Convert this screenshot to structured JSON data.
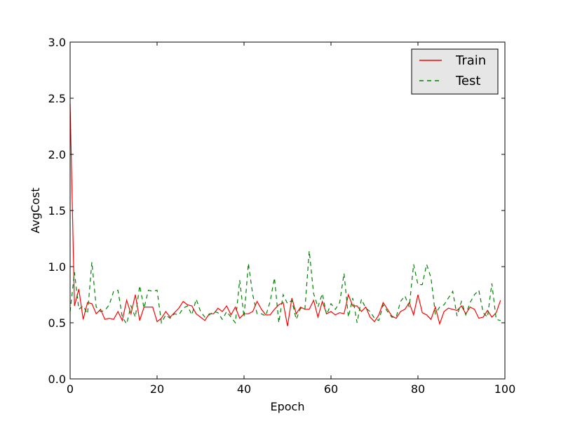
{
  "chart_data": {
    "type": "line",
    "xlabel": "Epoch",
    "ylabel": "AvgCost",
    "xlim": [
      0,
      100
    ],
    "ylim": [
      0.0,
      3.0
    ],
    "x_ticks": [
      "0",
      "20",
      "40",
      "60",
      "80",
      "100"
    ],
    "y_ticks": [
      "0.0",
      "0.5",
      "1.0",
      "1.5",
      "2.0",
      "2.5",
      "3.0"
    ],
    "legend_position": "top-right",
    "grid": false,
    "series": [
      {
        "name": "Train",
        "color": "#ff0000",
        "style": "solid",
        "values": [
          2.45,
          0.65,
          0.8,
          0.53,
          0.68,
          0.67,
          0.58,
          0.62,
          0.53,
          0.54,
          0.53,
          0.6,
          0.52,
          0.7,
          0.58,
          0.75,
          0.52,
          0.64,
          0.64,
          0.64,
          0.51,
          0.54,
          0.6,
          0.55,
          0.59,
          0.63,
          0.69,
          0.66,
          0.65,
          0.58,
          0.55,
          0.52,
          0.58,
          0.58,
          0.63,
          0.6,
          0.65,
          0.57,
          0.64,
          0.54,
          0.58,
          0.58,
          0.6,
          0.69,
          0.62,
          0.57,
          0.57,
          0.62,
          0.66,
          0.68,
          0.47,
          0.72,
          0.58,
          0.64,
          0.62,
          0.62,
          0.7,
          0.55,
          0.69,
          0.58,
          0.6,
          0.57,
          0.59,
          0.58,
          0.75,
          0.65,
          0.65,
          0.6,
          0.64,
          0.55,
          0.51,
          0.57,
          0.68,
          0.62,
          0.56,
          0.54,
          0.6,
          0.62,
          0.68,
          0.57,
          0.75,
          0.59,
          0.57,
          0.53,
          0.64,
          0.49,
          0.6,
          0.63,
          0.62,
          0.61,
          0.65,
          0.58,
          0.64,
          0.62,
          0.54,
          0.55,
          0.61,
          0.55,
          0.59,
          0.7
        ]
      },
      {
        "name": "Test",
        "color": "#008000",
        "style": "dashed",
        "values": [
          0.6,
          0.95,
          0.62,
          0.65,
          0.58,
          1.04,
          0.64,
          0.6,
          0.61,
          0.66,
          0.78,
          0.79,
          0.55,
          0.49,
          0.65,
          0.55,
          0.83,
          0.63,
          0.79,
          0.78,
          0.79,
          0.5,
          0.57,
          0.54,
          0.58,
          0.57,
          0.63,
          0.65,
          0.57,
          0.71,
          0.6,
          0.55,
          0.57,
          0.6,
          0.59,
          0.53,
          0.6,
          0.55,
          0.5,
          0.88,
          0.55,
          1.03,
          0.75,
          0.58,
          0.58,
          0.56,
          0.69,
          0.9,
          0.5,
          0.75,
          0.67,
          0.7,
          0.53,
          0.63,
          0.62,
          1.14,
          0.76,
          0.64,
          0.76,
          0.57,
          0.67,
          0.62,
          0.68,
          0.94,
          0.55,
          0.72,
          0.5,
          0.71,
          0.63,
          0.6,
          0.54,
          0.52,
          0.66,
          0.6,
          0.55,
          0.55,
          0.69,
          0.74,
          0.64,
          1.02,
          0.84,
          0.84,
          1.02,
          0.9,
          0.58,
          0.64,
          0.66,
          0.72,
          0.78,
          0.56,
          0.69,
          0.57,
          0.68,
          0.75,
          0.79,
          0.59,
          0.55,
          0.85,
          0.53,
          0.52
        ]
      }
    ]
  }
}
